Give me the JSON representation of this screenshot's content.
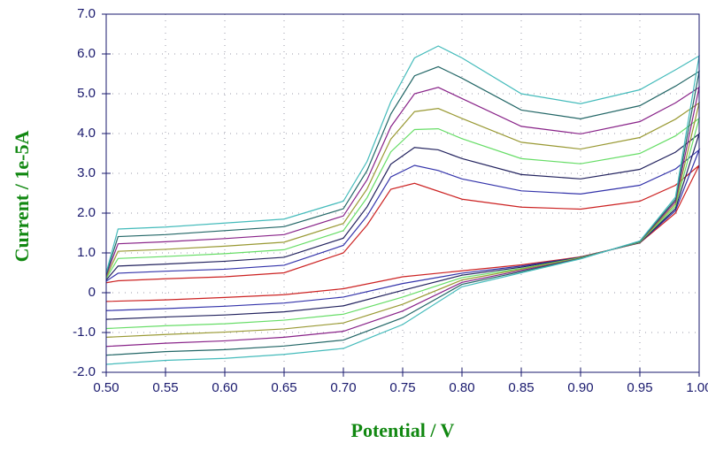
{
  "chart_data": {
    "type": "line",
    "xlabel": "Potential / V",
    "ylabel": "Current / 1e-5A",
    "x": [
      0.5,
      0.51,
      0.55,
      0.6,
      0.65,
      0.7,
      0.72,
      0.74,
      0.76,
      0.78,
      0.8,
      0.85,
      0.9,
      0.95,
      0.98,
      1.0,
      0.98,
      0.95,
      0.9,
      0.85,
      0.8,
      0.75,
      0.7,
      0.65,
      0.6,
      0.55,
      0.5
    ],
    "series": [
      {
        "color": "#cc2222",
        "values": [
          0.25,
          0.3,
          0.35,
          0.4,
          0.5,
          1.0,
          1.7,
          2.6,
          2.75,
          2.55,
          2.35,
          2.15,
          2.1,
          2.3,
          2.7,
          3.2,
          2.0,
          1.25,
          0.9,
          0.7,
          0.55,
          0.4,
          0.1,
          -0.05,
          -0.12,
          -0.18,
          -0.22
        ]
      },
      {
        "color": "#3333aa",
        "values": [
          0.29,
          0.49,
          0.54,
          0.59,
          0.69,
          1.19,
          1.93,
          2.91,
          3.2,
          3.07,
          2.86,
          2.56,
          2.48,
          2.7,
          3.11,
          3.59,
          2.06,
          1.26,
          0.89,
          0.67,
          0.49,
          0.23,
          -0.11,
          -0.26,
          -0.34,
          -0.4,
          -0.45
        ]
      },
      {
        "color": "#22225e",
        "values": [
          0.32,
          0.67,
          0.72,
          0.79,
          0.89,
          1.37,
          2.16,
          3.23,
          3.65,
          3.59,
          3.37,
          2.97,
          2.86,
          3.1,
          3.53,
          3.99,
          2.11,
          1.26,
          0.89,
          0.64,
          0.44,
          0.06,
          -0.33,
          -0.48,
          -0.56,
          -0.61,
          -0.67
        ]
      },
      {
        "color": "#66dd66",
        "values": [
          0.36,
          0.86,
          0.91,
          0.98,
          1.08,
          1.56,
          2.39,
          3.54,
          4.1,
          4.12,
          3.87,
          3.37,
          3.24,
          3.5,
          3.94,
          4.38,
          2.17,
          1.27,
          0.88,
          0.61,
          0.38,
          -0.11,
          -0.54,
          -0.69,
          -0.78,
          -0.83,
          -0.9
        ]
      },
      {
        "color": "#999933",
        "values": [
          0.39,
          1.04,
          1.09,
          1.17,
          1.27,
          1.74,
          2.61,
          3.86,
          4.55,
          4.63,
          4.38,
          3.78,
          3.61,
          3.9,
          4.36,
          4.77,
          2.23,
          1.28,
          0.87,
          0.59,
          0.32,
          -0.29,
          -0.76,
          -0.91,
          -0.99,
          -1.05,
          -1.12
        ]
      },
      {
        "color": "#882288",
        "values": [
          0.43,
          1.23,
          1.28,
          1.36,
          1.46,
          1.93,
          2.84,
          4.17,
          5.0,
          5.16,
          4.88,
          4.18,
          3.99,
          4.3,
          4.77,
          5.16,
          2.29,
          1.29,
          0.86,
          0.56,
          0.26,
          -0.46,
          -0.97,
          -1.12,
          -1.21,
          -1.27,
          -1.35
        ]
      },
      {
        "color": "#226666",
        "values": [
          0.46,
          1.41,
          1.46,
          1.56,
          1.66,
          2.11,
          3.07,
          4.49,
          5.45,
          5.68,
          5.39,
          4.59,
          4.37,
          4.7,
          5.19,
          5.56,
          2.34,
          1.29,
          0.86,
          0.53,
          0.21,
          -0.63,
          -1.19,
          -1.34,
          -1.43,
          -1.48,
          -1.57
        ]
      },
      {
        "color": "#44bbbb",
        "values": [
          0.5,
          1.6,
          1.65,
          1.75,
          1.85,
          2.3,
          3.3,
          4.8,
          5.9,
          6.2,
          5.9,
          5.0,
          4.75,
          5.1,
          5.6,
          5.95,
          2.4,
          1.3,
          0.85,
          0.5,
          0.15,
          -0.8,
          -1.4,
          -1.55,
          -1.65,
          -1.7,
          -1.8
        ]
      }
    ],
    "xlim": [
      0.5,
      1.0
    ],
    "xticks": [
      {
        "value": 0.5,
        "label": "0.50"
      },
      {
        "value": 0.55,
        "label": "0.55"
      },
      {
        "value": 0.6,
        "label": "0.60"
      },
      {
        "value": 0.65,
        "label": "0.65"
      },
      {
        "value": 0.7,
        "label": "0.70"
      },
      {
        "value": 0.75,
        "label": "0.75"
      },
      {
        "value": 0.8,
        "label": "0.80"
      },
      {
        "value": 0.85,
        "label": "0.85"
      },
      {
        "value": 0.9,
        "label": "0.90"
      },
      {
        "value": 0.95,
        "label": "0.95"
      },
      {
        "value": 1.0,
        "label": "1.00"
      }
    ],
    "ylim": [
      -2,
      7
    ],
    "yticks": [
      {
        "value": -2,
        "label": "-2.0"
      },
      {
        "value": -1,
        "label": "-1.0"
      },
      0,
      {
        "value": 1,
        "label": "1.0"
      },
      {
        "value": 2,
        "label": "2.0"
      },
      {
        "value": 3,
        "label": "3.0"
      },
      {
        "value": 4,
        "label": "4.0"
      },
      {
        "value": 5,
        "label": "5.0"
      },
      {
        "value": 6,
        "label": "6.0"
      },
      {
        "value": 7,
        "label": "7.0"
      }
    ],
    "grid": true
  }
}
